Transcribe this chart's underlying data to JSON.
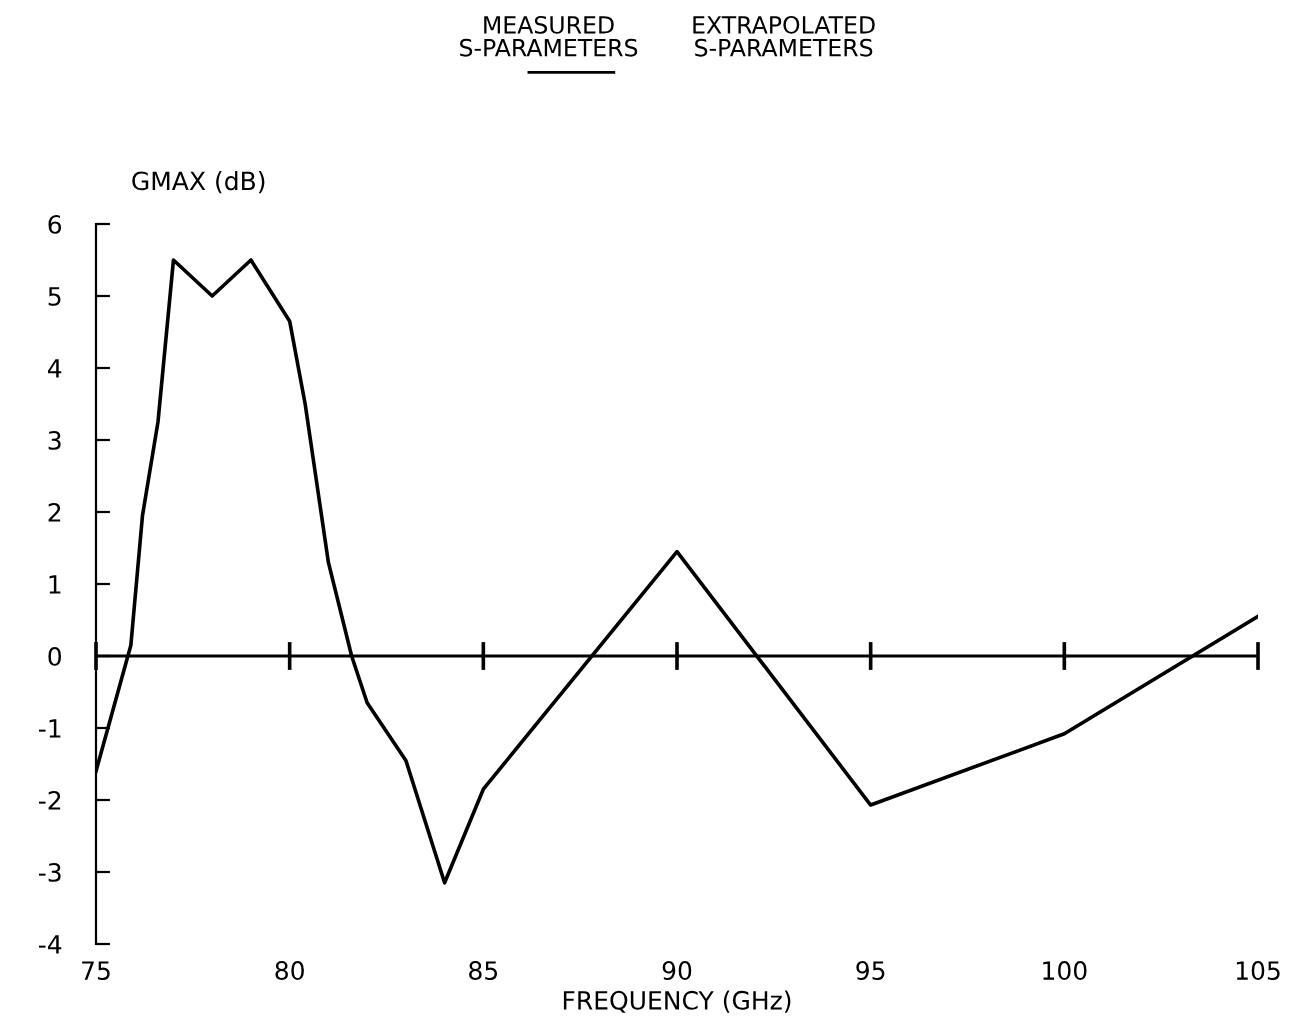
{
  "chart_data": {
    "type": "line",
    "annotations": [
      "MEASURED\nS-PARAMETERS",
      "EXTRAPOLATED\nS-PARAMETERS"
    ],
    "xlabel": "FREQUENCY (GHz)",
    "ylabel": "GMAX (dB)",
    "x": [
      75,
      75.9,
      76.2,
      76.6,
      77,
      78,
      79,
      80,
      80.4,
      81,
      81.6,
      82,
      83,
      84,
      85,
      90,
      95,
      100,
      105
    ],
    "series": [
      {
        "color": "#000000",
        "values": [
          -1.6,
          0.15,
          1.95,
          3.25,
          5.5,
          5.0,
          5.5,
          4.65,
          3.5,
          1.3,
          0,
          -0.65,
          -1.45,
          -3.15,
          -1.85,
          1.45,
          -2.07,
          -1.08,
          0.55
        ]
      }
    ],
    "xlim": [
      75,
      105
    ],
    "xticks": [
      75,
      80,
      85,
      90,
      95,
      100,
      105
    ],
    "ylim": [
      -4,
      6
    ],
    "yticks": [
      -4,
      -3,
      -2,
      -1,
      0,
      1,
      2,
      3,
      4,
      5,
      6
    ],
    "ref_lines": [
      {
        "axis": "y",
        "value": 0,
        "color": "#000000"
      }
    ],
    "grid": false,
    "legend": false,
    "marker": "none",
    "line_style": "solid"
  }
}
